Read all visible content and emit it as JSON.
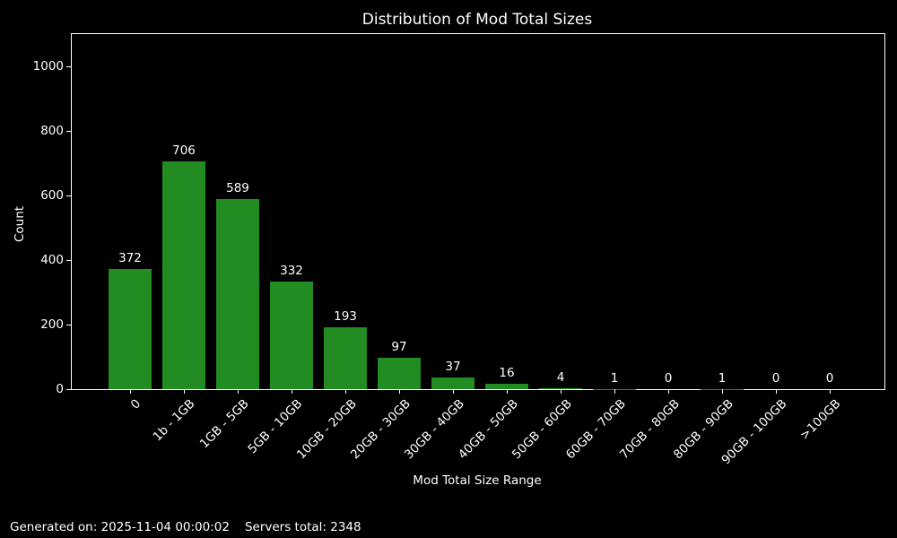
{
  "chart_data": {
    "type": "bar",
    "title": "Distribution of Mod Total Sizes",
    "xlabel": "Mod Total Size Range",
    "ylabel": "Count",
    "categories": [
      "0",
      "1b - 1GB",
      "1GB - 5GB",
      "5GB - 10GB",
      "10GB - 20GB",
      "20GB - 30GB",
      "30GB - 40GB",
      "40GB - 50GB",
      "50GB - 60GB",
      "60GB - 70GB",
      "70GB - 80GB",
      "80GB - 90GB",
      "90GB - 100GB",
      ">100GB"
    ],
    "values": [
      372,
      706,
      589,
      332,
      193,
      97,
      37,
      16,
      4,
      1,
      0,
      1,
      0,
      0
    ],
    "yticks": [
      0,
      200,
      400,
      600,
      800,
      1000
    ],
    "ylim": [
      0,
      1100
    ],
    "grid": false,
    "legend": null,
    "bar_color": "#228b22",
    "background_color": "#000000",
    "text_color": "#ffffff",
    "axis_color": "#ffffff"
  },
  "footer": {
    "generated": "Generated on: 2025-11-04 00:00:02",
    "servers_total": "Servers total: 2348"
  }
}
